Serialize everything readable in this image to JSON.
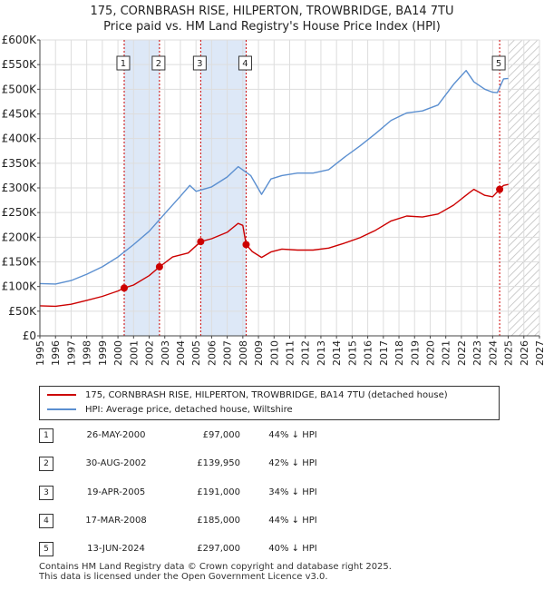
{
  "chart_data": {
    "type": "line",
    "title": "175, CORNBRASH RISE, HILPERTON, TROWBRIDGE, BA14 7TU",
    "subtitle": "Price paid vs. HM Land Registry's House Price Index (HPI)",
    "y_tick_labels": [
      "£0",
      "£50K",
      "£100K",
      "£150K",
      "£200K",
      "£250K",
      "£300K",
      "£350K",
      "£400K",
      "£450K",
      "£500K",
      "£550K",
      "£600K"
    ],
    "y_tick_values": [
      0,
      50000,
      100000,
      150000,
      200000,
      250000,
      300000,
      350000,
      400000,
      450000,
      500000,
      550000,
      600000
    ],
    "x_tick_labels": [
      "1995",
      "1996",
      "1997",
      "1998",
      "1999",
      "2000",
      "2001",
      "2002",
      "2003",
      "2004",
      "2005",
      "2006",
      "2007",
      "2008",
      "2009",
      "2010",
      "2011",
      "2012",
      "2013",
      "2014",
      "2015",
      "2016",
      "2017",
      "2018",
      "2019",
      "2020",
      "2021",
      "2022",
      "2023",
      "2024",
      "2025",
      "2026",
      "2027"
    ],
    "xlim": [
      1995,
      2027
    ],
    "ylim": [
      0,
      600000
    ],
    "grid": true,
    "colors": {
      "property": "#cc0000",
      "hpi": "#5b8fd0",
      "shade": "#dde8f7",
      "marker_line": "#cc0000",
      "hatch": "#bbbbbb",
      "grid": "#dddddd"
    },
    "shaded_periods": [
      [
        2000.4,
        2002.66
      ],
      [
        2005.3,
        2008.21
      ]
    ],
    "future_from": 2025.0,
    "series": [
      {
        "name": "175, CORNBRASH RISE, HILPERTON, TROWBRIDGE, BA14 7TU (detached house)",
        "color": "#cc0000",
        "x": [
          1995.0,
          1996.0,
          1997.0,
          1998.0,
          1999.0,
          2000.0,
          2000.4,
          2001.0,
          2002.0,
          2002.66,
          2003.5,
          2004.5,
          2005.3,
          2006.0,
          2007.0,
          2007.7,
          2008.0,
          2008.21,
          2008.6,
          2009.2,
          2009.8,
          2010.5,
          2011.5,
          2012.5,
          2013.5,
          2014.5,
          2015.5,
          2016.5,
          2017.5,
          2018.5,
          2019.5,
          2020.5,
          2021.5,
          2022.5,
          2022.8,
          2023.5,
          2024.0,
          2024.45,
          2024.7,
          2025.0
        ],
        "values": [
          61000,
          60000,
          64000,
          72000,
          80000,
          91000,
          97000,
          103000,
          122000,
          139950,
          160000,
          168000,
          191000,
          197000,
          210000,
          228000,
          224000,
          185000,
          171000,
          159000,
          170000,
          176000,
          174000,
          174000,
          178000,
          188000,
          199000,
          214000,
          233000,
          243000,
          241000,
          247000,
          265000,
          290000,
          297000,
          285000,
          282000,
          297000,
          305000,
          307000
        ]
      },
      {
        "name": "HPI: Average price, detached house, Wiltshire",
        "color": "#5b8fd0",
        "x": [
          1995.0,
          1996.0,
          1997.0,
          1998.0,
          1999.0,
          2000.0,
          2001.0,
          2002.0,
          2003.0,
          2004.0,
          2004.6,
          2005.0,
          2006.0,
          2007.0,
          2007.7,
          2008.5,
          2009.2,
          2009.8,
          2010.5,
          2011.5,
          2012.5,
          2013.5,
          2014.5,
          2015.5,
          2016.5,
          2017.5,
          2018.5,
          2019.5,
          2020.5,
          2021.5,
          2022.3,
          2022.8,
          2023.5,
          2024.0,
          2024.3,
          2024.7,
          2025.0
        ],
        "values": [
          106000,
          105000,
          112000,
          125000,
          140000,
          160000,
          185000,
          212000,
          248000,
          283000,
          305000,
          293000,
          302000,
          322000,
          343000,
          325000,
          287000,
          318000,
          325000,
          330000,
          330000,
          337000,
          362000,
          385000,
          410000,
          437000,
          452000,
          456000,
          468000,
          510000,
          538000,
          515000,
          500000,
          494000,
          493000,
          521000,
          522000
        ]
      }
    ],
    "transactions": [
      {
        "num": "1",
        "x": 2000.4,
        "value": 97000
      },
      {
        "num": "2",
        "x": 2002.66,
        "value": 139950
      },
      {
        "num": "3",
        "x": 2005.3,
        "value": 191000
      },
      {
        "num": "4",
        "x": 2008.21,
        "value": 185000
      },
      {
        "num": "5",
        "x": 2024.45,
        "value": 297000
      }
    ]
  },
  "legend": {
    "property_label": "175, CORNBRASH RISE, HILPERTON, TROWBRIDGE, BA14 7TU (detached house)",
    "hpi_label": "HPI: Average price, detached house, Wiltshire"
  },
  "table": [
    {
      "num": "1",
      "date": "26-MAY-2000",
      "price": "£97,000",
      "diff": "44% ↓ HPI"
    },
    {
      "num": "2",
      "date": "30-AUG-2002",
      "price": "£139,950",
      "diff": "42% ↓ HPI"
    },
    {
      "num": "3",
      "date": "19-APR-2005",
      "price": "£191,000",
      "diff": "34% ↓ HPI"
    },
    {
      "num": "4",
      "date": "17-MAR-2008",
      "price": "£185,000",
      "diff": "44% ↓ HPI"
    },
    {
      "num": "5",
      "date": "13-JUN-2024",
      "price": "£297,000",
      "diff": "40% ↓ HPI"
    }
  ],
  "footer": {
    "line1": "Contains HM Land Registry data © Crown copyright and database right 2025.",
    "line2": "This data is licensed under the Open Government Licence v3.0."
  }
}
